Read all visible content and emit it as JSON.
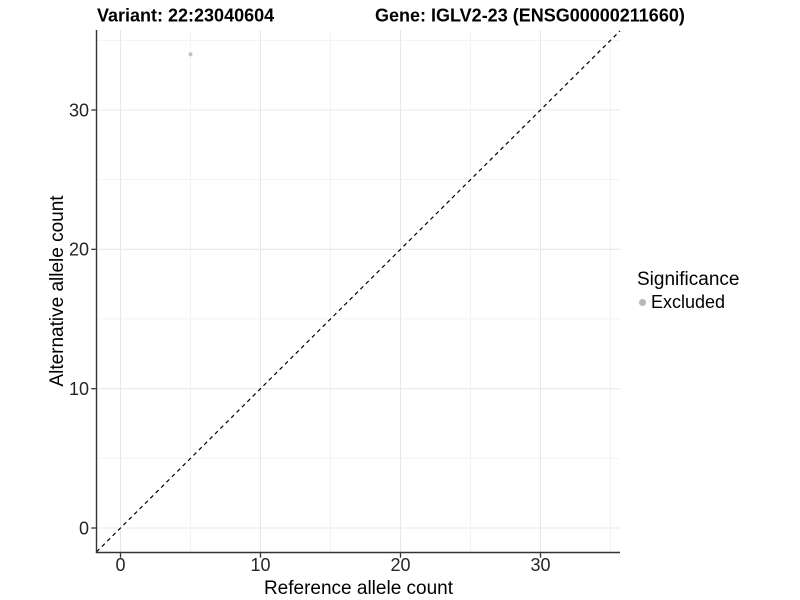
{
  "chart_data": {
    "type": "scatter",
    "title_variant": "Variant: 22:23040604",
    "title_gene": "Gene: IGLV2-23 (ENSG00000211660)",
    "xlabel": "Reference allele count",
    "ylabel": "Alternative allele count",
    "xlim": [
      -1.7,
      35.7
    ],
    "ylim": [
      -1.75,
      35.75
    ],
    "x_ticks": [
      0,
      10,
      20,
      30
    ],
    "y_ticks": [
      0,
      10,
      20,
      30
    ],
    "x_minor_grid": [
      5,
      15,
      25,
      35
    ],
    "y_minor_grid": [
      5,
      15,
      25,
      35
    ],
    "grid": "major + minor, light grey on white panel",
    "series": [
      {
        "name": "Excluded",
        "marker": "circle",
        "color": "#c2c2c2",
        "points": [
          {
            "x": 5,
            "y": 34
          }
        ]
      }
    ],
    "reference_line": {
      "kind": "identity y = x",
      "style": "dashed",
      "color": "#000000"
    },
    "legend": {
      "title": "Significance",
      "position": "right-middle",
      "items": [
        {
          "label": "Excluded",
          "color": "#b8b8b8",
          "marker": "circle"
        }
      ]
    },
    "colors": {
      "major_grid": "#e8e8e8",
      "minor_grid": "#f3f3f3",
      "axis_line": "#333333",
      "tick_label": "#262626",
      "point": "#c2c2c2",
      "reference_line": "#000000"
    }
  }
}
